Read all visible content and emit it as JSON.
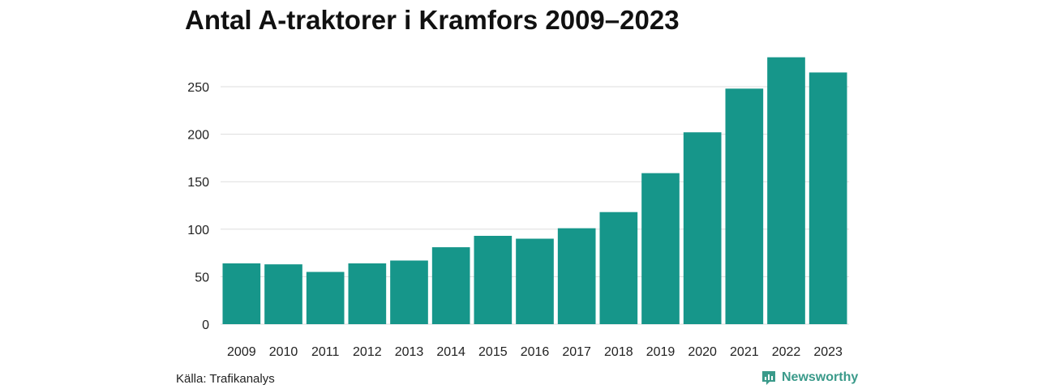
{
  "title": "Antal A-traktorer i Kramfors 2009–2023",
  "source": "Källa: Trafikanalys",
  "brand": {
    "name": "Newsworthy",
    "icon": "newsworthy-logo-icon",
    "color": "#3a9a8a"
  },
  "chart_data": {
    "type": "bar",
    "title": "Antal A-traktorer i Kramfors 2009–2023",
    "xlabel": "",
    "ylabel": "",
    "categories": [
      "2009",
      "2010",
      "2011",
      "2012",
      "2013",
      "2014",
      "2015",
      "2016",
      "2017",
      "2018",
      "2019",
      "2020",
      "2021",
      "2022",
      "2023"
    ],
    "values": [
      64,
      63,
      55,
      64,
      67,
      81,
      93,
      90,
      101,
      118,
      159,
      202,
      248,
      281,
      265
    ],
    "ylim": [
      0,
      290
    ],
    "yticks": [
      0,
      50,
      100,
      150,
      200,
      250
    ],
    "grid": true,
    "bar_color": "#16968a",
    "grid_color": "#dddddd"
  }
}
